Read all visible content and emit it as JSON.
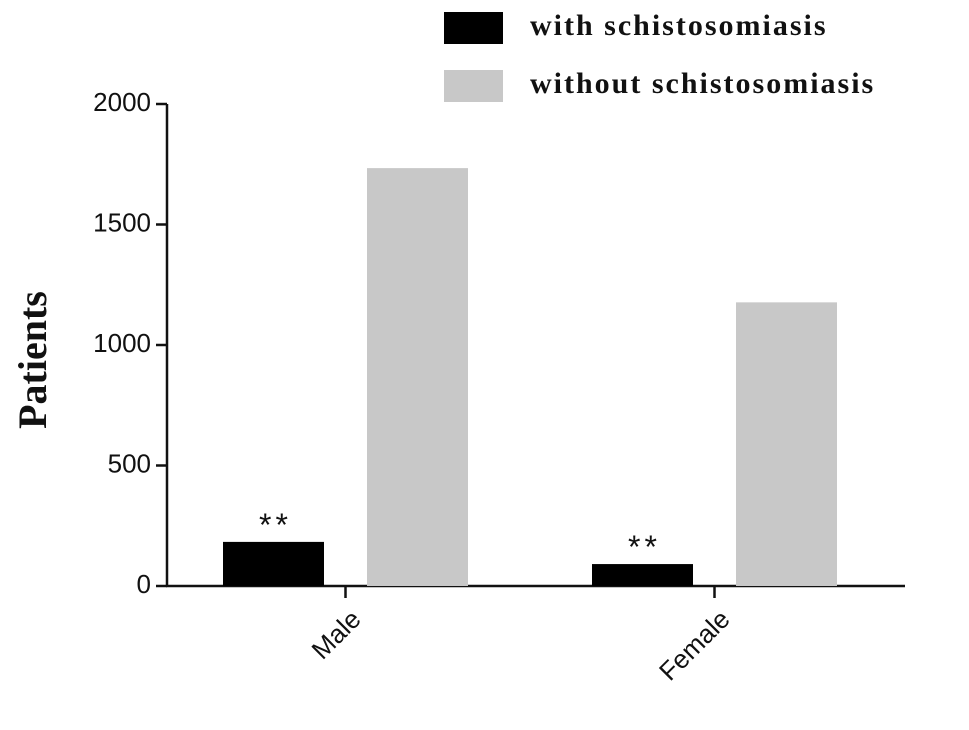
{
  "chart_data": {
    "type": "bar",
    "y_label": "Patients",
    "categories": [
      "Male",
      "Female"
    ],
    "series": [
      {
        "name": "with schistosomiasis",
        "color": "#000000",
        "values": [
          183,
          91
        ]
      },
      {
        "name": "without schistosomiasis",
        "color": "#c8c8c8",
        "values": [
          1734,
          1177
        ]
      }
    ],
    "annotations": [
      "**",
      "**"
    ],
    "ylim": [
      0,
      2000
    ],
    "yticks": [
      0,
      500,
      1000,
      1500,
      2000
    ],
    "grid": false
  }
}
